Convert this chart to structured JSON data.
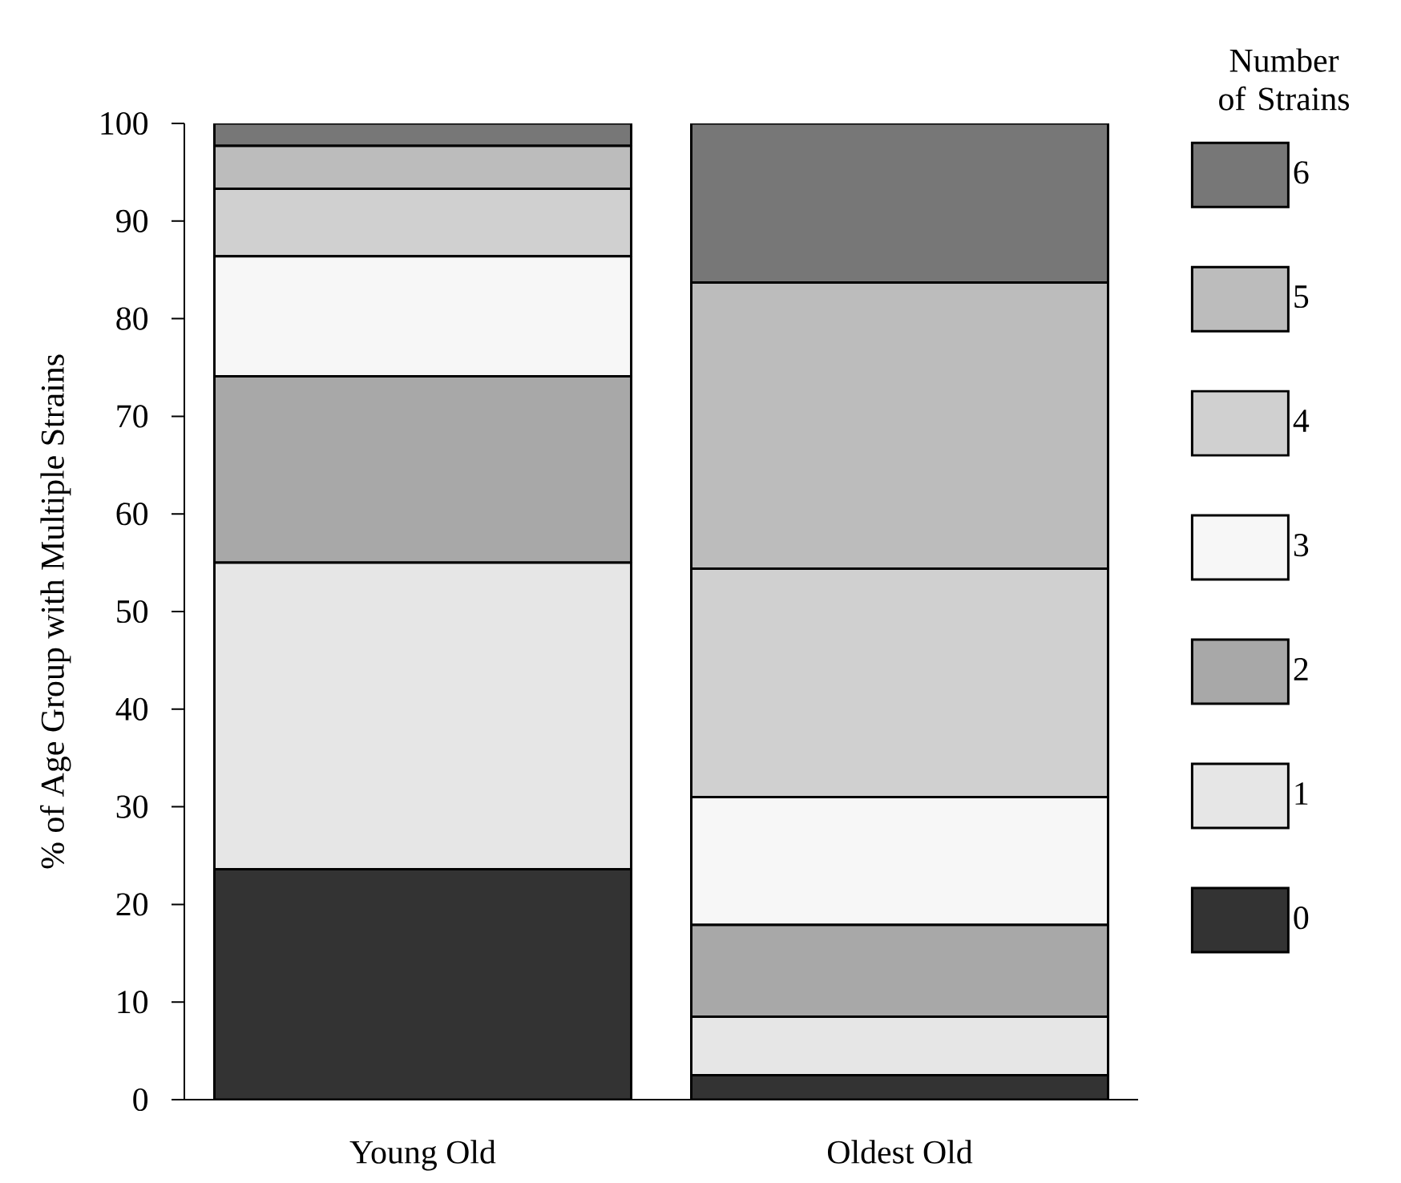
{
  "chart_data": {
    "type": "bar",
    "stacked": true,
    "ylabel": "% of Age Group with Multiple Strains",
    "legend_title": "Number of Strains",
    "legend": "right",
    "categories": [
      "Young Old",
      "Oldest Old"
    ],
    "ylim": [
      0,
      100
    ],
    "yticks": [
      0,
      10,
      20,
      30,
      40,
      50,
      60,
      70,
      80,
      90,
      100
    ],
    "series": [
      {
        "name": "0",
        "color": "#333333",
        "values": [
          23.6,
          2.5
        ]
      },
      {
        "name": "1",
        "color": "#e6e6e6",
        "values": [
          31.4,
          6.0
        ]
      },
      {
        "name": "2",
        "color": "#a8a8a8",
        "values": [
          19.1,
          9.4
        ]
      },
      {
        "name": "3",
        "color": "#f7f7f7",
        "values": [
          12.3,
          13.1
        ]
      },
      {
        "name": "4",
        "color": "#d0d0d0",
        "values": [
          6.9,
          23.4
        ]
      },
      {
        "name": "5",
        "color": "#bcbcbc",
        "values": [
          4.4,
          29.3
        ]
      },
      {
        "name": "6",
        "color": "#777777",
        "values": [
          2.3,
          16.3
        ]
      }
    ]
  }
}
